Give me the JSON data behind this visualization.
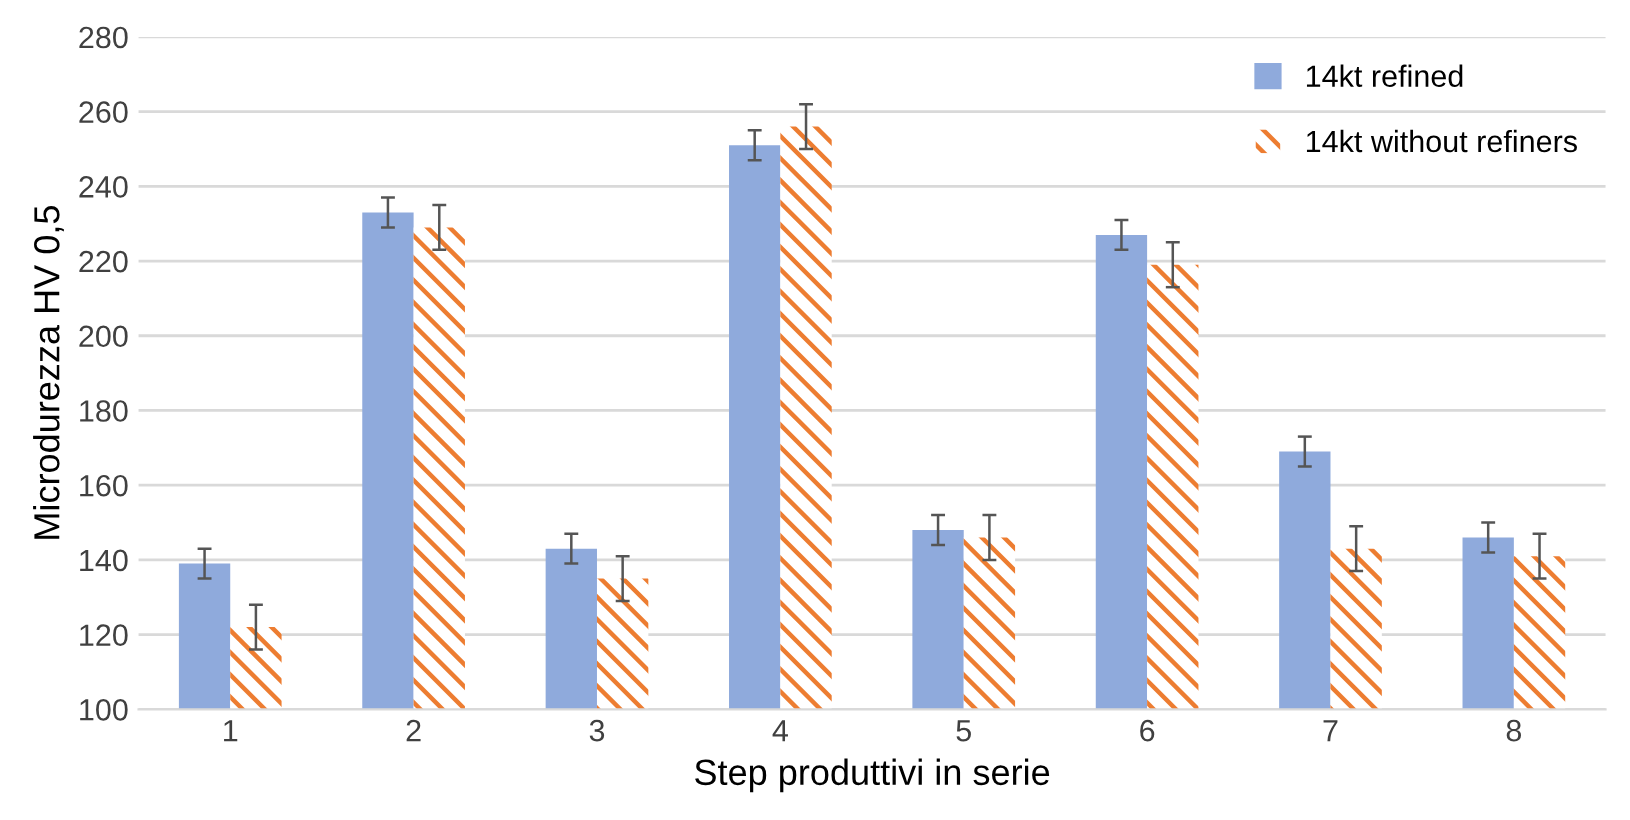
{
  "chart_data": {
    "type": "bar",
    "xlabel": "Step produttivi in serie",
    "ylabel": "Microdurezza HV 0,5",
    "categories": [
      "1",
      "2",
      "3",
      "4",
      "5",
      "6",
      "7",
      "8"
    ],
    "series": [
      {
        "name": "14kt refined",
        "color": "#8faadc",
        "values": [
          139,
          233,
          143,
          251,
          148,
          227,
          169,
          146
        ],
        "errors": [
          4,
          4,
          4,
          4,
          4,
          4,
          4,
          4
        ]
      },
      {
        "name": "14kt without refiners",
        "color": "#ed7d31",
        "values": [
          122,
          229,
          135,
          256,
          146,
          219,
          143,
          141
        ],
        "errors": [
          6,
          6,
          6,
          6,
          6,
          6,
          6,
          6
        ]
      }
    ],
    "ylim": [
      100,
      280
    ],
    "yticks": [
      100,
      120,
      140,
      160,
      180,
      200,
      220,
      240,
      260,
      280
    ],
    "grid": "y",
    "legend": "top right"
  }
}
